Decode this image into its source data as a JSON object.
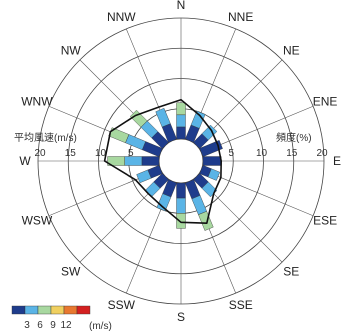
{
  "chart_data": {
    "type": "wind-rose",
    "directions": [
      "N",
      "NNE",
      "NE",
      "ENE",
      "E",
      "ESE",
      "SE",
      "SSE",
      "S",
      "SSW",
      "SW",
      "WSW",
      "W",
      "WNW",
      "NW",
      "NNW"
    ],
    "left_axis": {
      "title": "平均風速(m/s)",
      "ticks": [
        "20",
        "15",
        "10",
        "5"
      ],
      "range": [
        0,
        20
      ]
    },
    "right_axis": {
      "title": "頻度(%)",
      "ticks": [
        "5",
        "10",
        "15",
        "20"
      ],
      "range": [
        0,
        20
      ]
    },
    "legend": {
      "unit": "(m/s)",
      "labels": [
        "3",
        "6",
        "9",
        "12"
      ],
      "colors": [
        "#1e3c8c",
        "#5ab4e6",
        "#a8d8a0",
        "#f0d060",
        "#e87830",
        "#d42020"
      ]
    },
    "frequency_percent": [
      6.0,
      5.0,
      4.0,
      3.5,
      3.0,
      3.0,
      4.0,
      8.5,
      7.5,
      5.0,
      4.0,
      4.0,
      8.5,
      9.0,
      7.5,
      5.5
    ],
    "mean_speed_ms": [
      6.5,
      4.5,
      3.5,
      3.0,
      3.0,
      3.5,
      4.0,
      7.5,
      6.5,
      4.5,
      4.0,
      4.5,
      9.0,
      9.0,
      7.0,
      6.0
    ],
    "speed_class_breaks_ms": [
      0,
      3,
      6,
      9,
      12,
      15
    ]
  }
}
